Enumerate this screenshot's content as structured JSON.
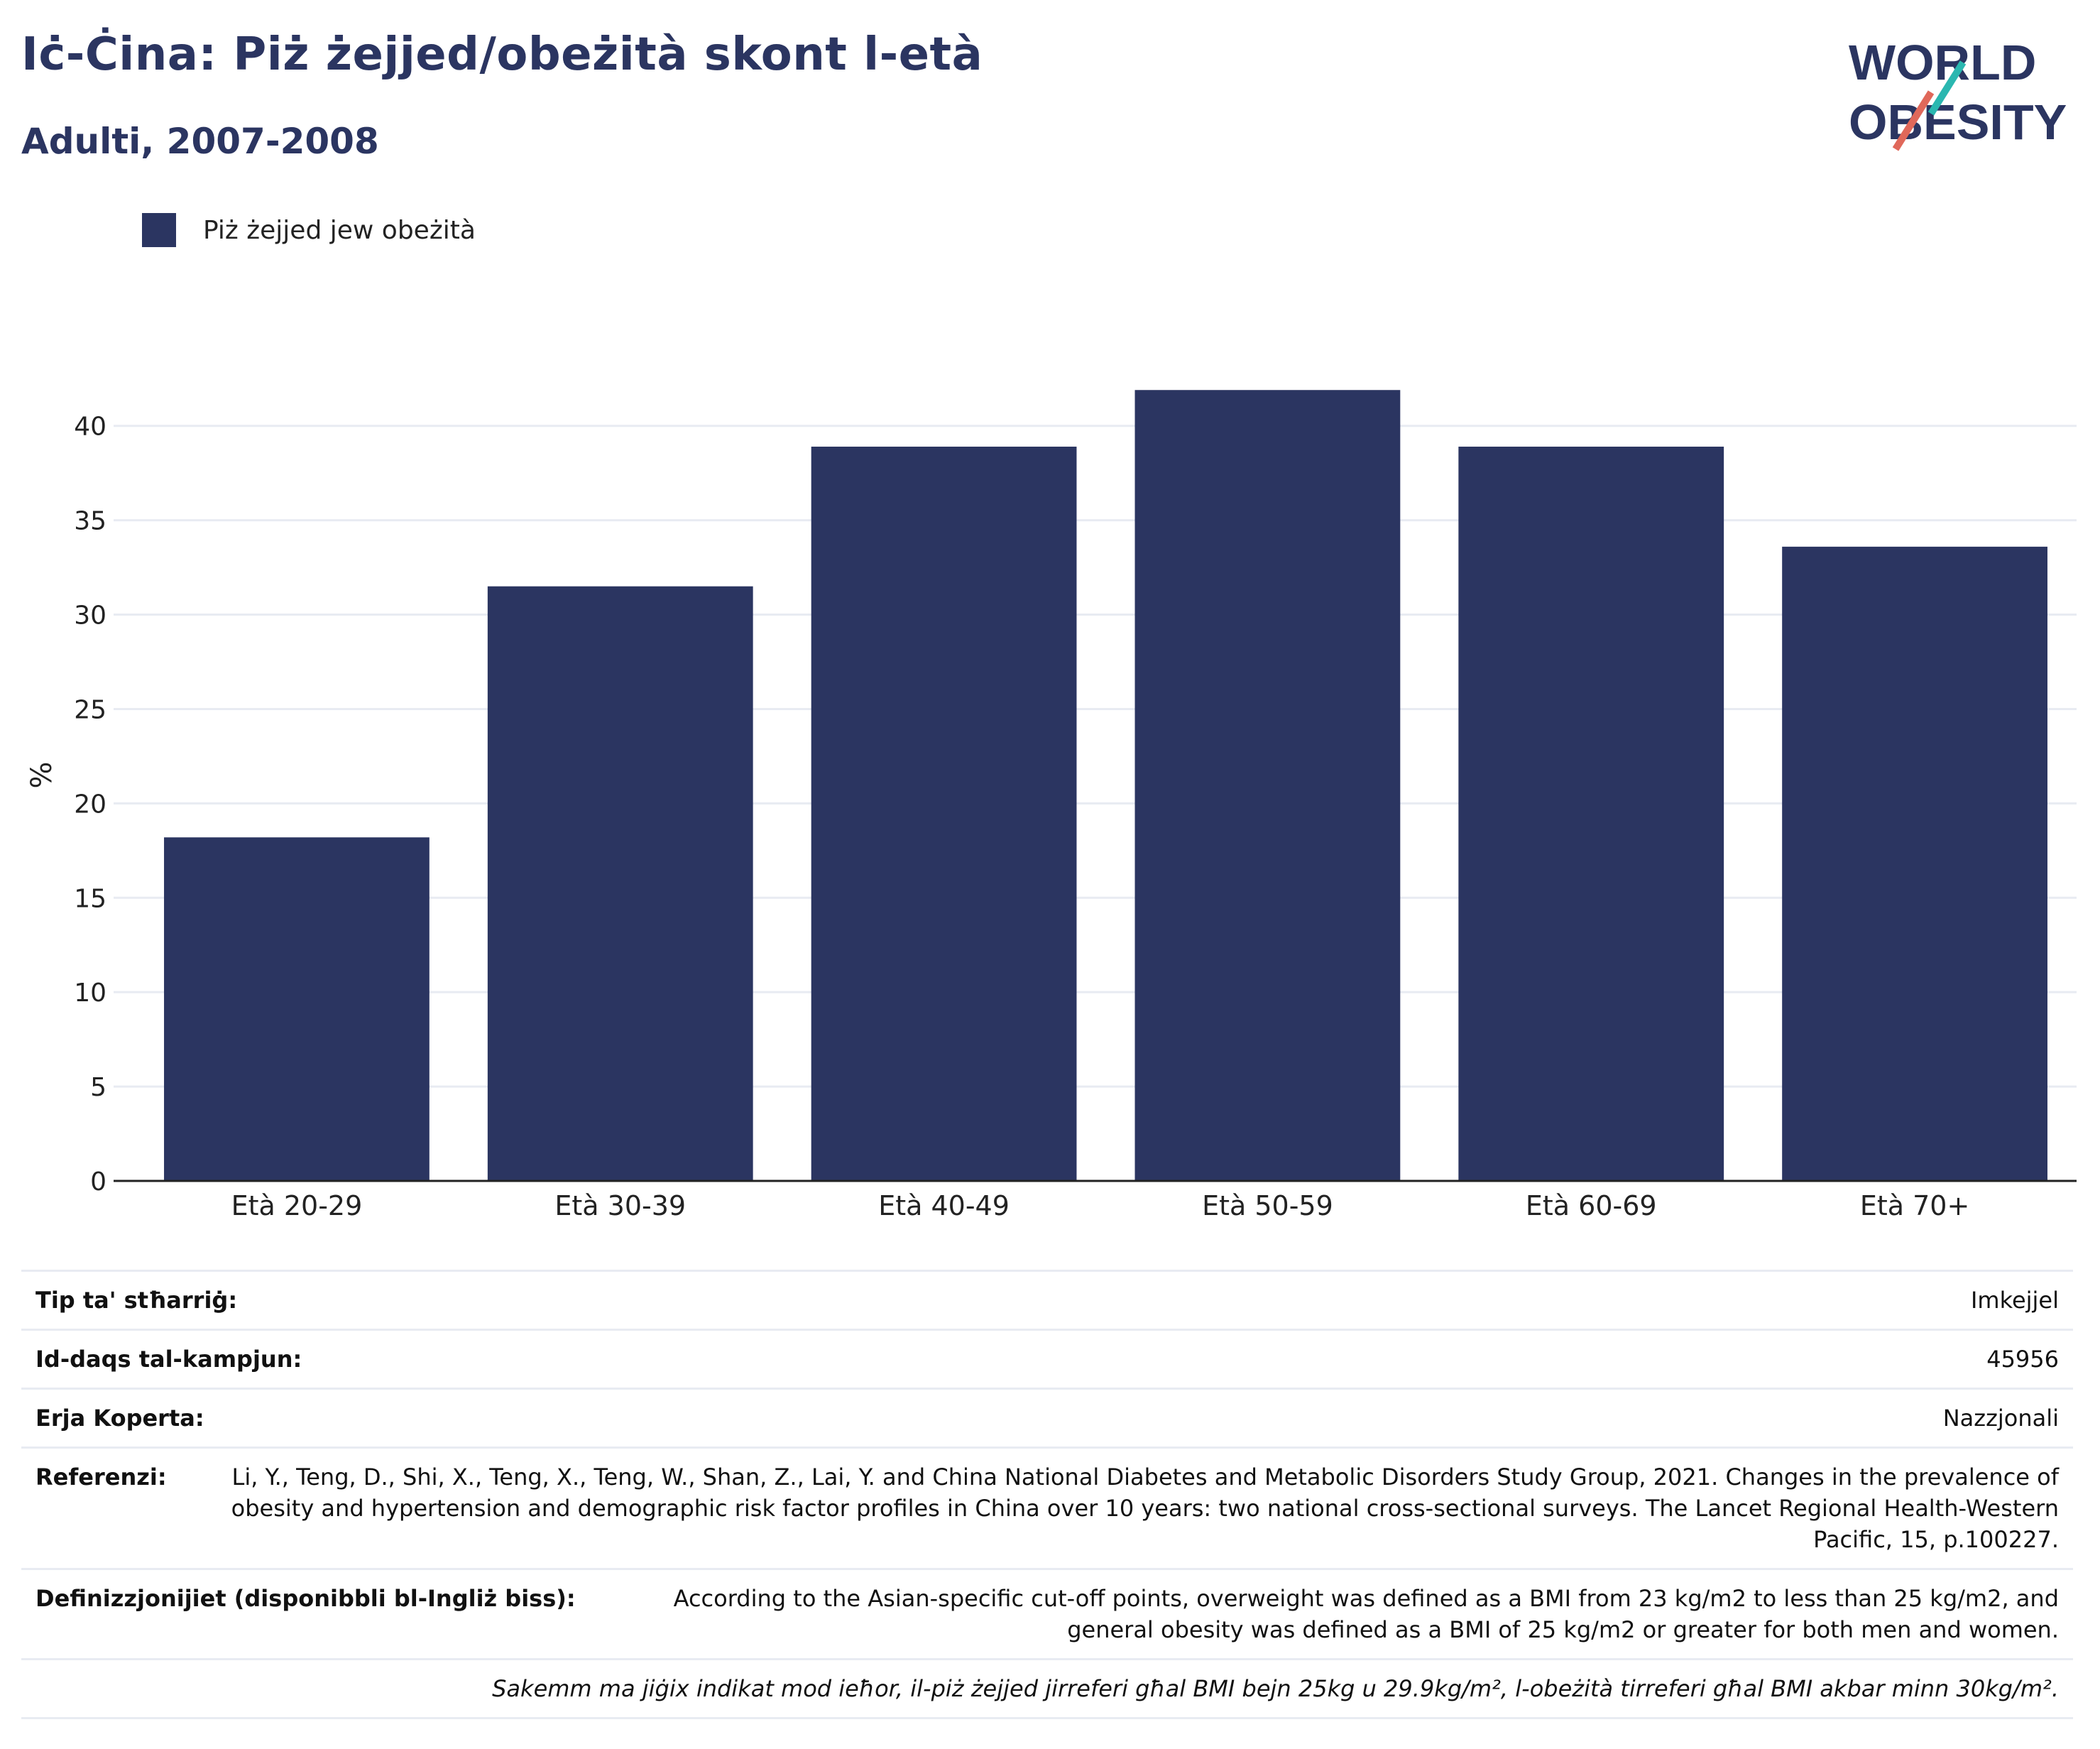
{
  "header": {
    "title": "Iċ-Ċina: Piż żejjed/obeżità skont l-età",
    "subtitle": "Adulti, 2007-2008"
  },
  "logo": {
    "line1": "WORLD",
    "line2": "OBESITY",
    "accent_colors": [
      "#2ab7b0",
      "#e0685a"
    ]
  },
  "chart_data": {
    "type": "bar",
    "categories": [
      "Età 20-29",
      "Età 30-39",
      "Età 40-49",
      "Età 50-59",
      "Età 60-69",
      "Età 70+"
    ],
    "series": [
      {
        "name": "Piż żejjed jew obeżità",
        "values": [
          18.2,
          31.5,
          38.9,
          41.9,
          38.9,
          33.6
        ],
        "color": "#2b3561"
      }
    ],
    "ylabel": "%",
    "xlabel": "",
    "ylim": [
      0,
      43
    ],
    "yticks": [
      0,
      5,
      10,
      15,
      20,
      25,
      30,
      35,
      40
    ],
    "grid": true,
    "legend": "top-left"
  },
  "info": {
    "rows": [
      {
        "label": "Tip ta' stħarriġ:",
        "value": "Imkejjel"
      },
      {
        "label": "Id-daqs tal-kampjun:",
        "value": "45956"
      },
      {
        "label": "Erja Koperta:",
        "value": "Nazzjonali"
      },
      {
        "label": "Referenzi:",
        "value": "Li, Y., Teng, D., Shi, X., Teng, X., Teng, W., Shan, Z., Lai, Y. and China National Diabetes and Metabolic Disorders Study Group, 2021. Changes in the prevalence of obesity and hypertension and demographic risk factor profiles in China over 10 years: two national cross-sectional surveys. The Lancet Regional Health-Western Pacific, 15, p.100227."
      },
      {
        "label": "Definizzjonijiet (disponibbli bl-Ingliż biss):",
        "value": "According to the Asian-specific cut-off points, overweight was defined as a BMI from 23 kg/m2 to less than 25 kg/m2, and general obesity was defined as a BMI of 25 kg/m2 or greater for both men and women."
      }
    ],
    "note": "Sakemm ma jiġix indikat mod ieħor, il-piż żejjed jirreferi għal BMI bejn 25kg u 29.9kg/m², l-obeżità tirreferi għal BMI akbar minn 30kg/m²."
  }
}
